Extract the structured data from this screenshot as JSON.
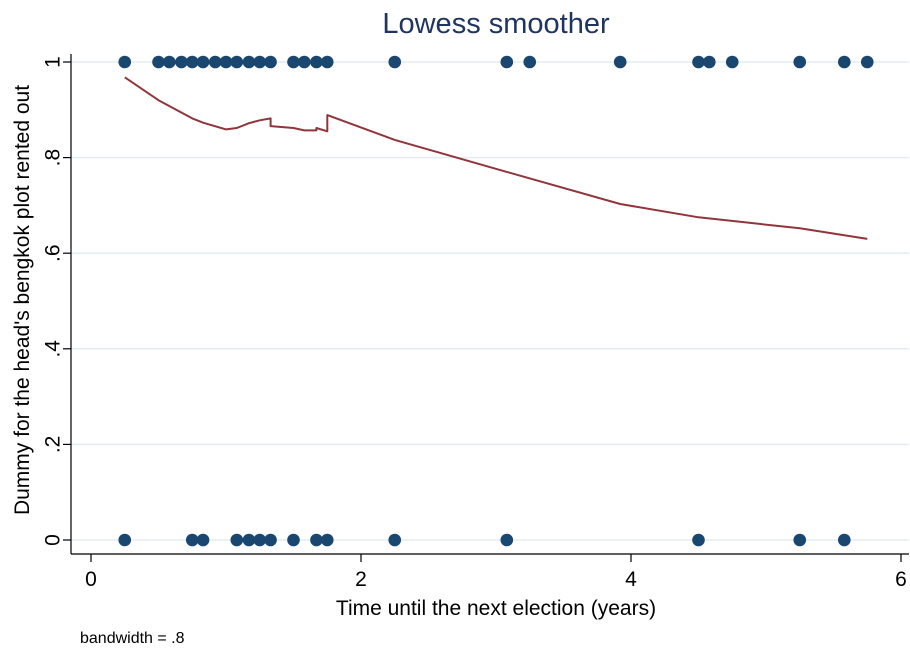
{
  "colors": {
    "background": "#ffffff",
    "title": "#1f3560",
    "grid": "#e3ecf0",
    "marker": "#1a476f",
    "smooth_line": "#90353b",
    "axis": "#000000"
  },
  "chart_data": {
    "type": "scatter",
    "title": "Lowess smoother",
    "xlabel": "Time until the next election (years)",
    "ylabel": "Dummy for the head's bengkok plot rented out",
    "note": "bandwidth = .8",
    "xlim": [
      0,
      6
    ],
    "ylim": [
      0,
      1
    ],
    "x_ticks": [
      {
        "value": 0,
        "label": "0"
      },
      {
        "value": 2,
        "label": "2"
      },
      {
        "value": 4,
        "label": "4"
      },
      {
        "value": 6,
        "label": "6"
      }
    ],
    "y_ticks": [
      {
        "value": 0,
        "label": "0"
      },
      {
        "value": 0.2,
        "label": ".2"
      },
      {
        "value": 0.4,
        "label": ".4"
      },
      {
        "value": 0.6,
        "label": ".6"
      },
      {
        "value": 0.8,
        "label": ".8"
      },
      {
        "value": 1,
        "label": "1"
      }
    ],
    "grid": true,
    "legend": "none",
    "series": [
      {
        "kind": "points",
        "points": [
          [
            0.25,
            1
          ],
          [
            0.5,
            1
          ],
          [
            0.58,
            1
          ],
          [
            0.67,
            1
          ],
          [
            0.75,
            1
          ],
          [
            0.83,
            1
          ],
          [
            0.92,
            1
          ],
          [
            1.0,
            1
          ],
          [
            1.08,
            1
          ],
          [
            1.17,
            1
          ],
          [
            1.25,
            1
          ],
          [
            1.33,
            1
          ],
          [
            1.5,
            1
          ],
          [
            1.58,
            1
          ],
          [
            1.67,
            1
          ],
          [
            1.75,
            1
          ],
          [
            2.25,
            1
          ],
          [
            3.08,
            1
          ],
          [
            3.25,
            1
          ],
          [
            3.92,
            1
          ],
          [
            4.5,
            1
          ],
          [
            4.58,
            1
          ],
          [
            4.75,
            1
          ],
          [
            5.25,
            1
          ],
          [
            5.58,
            1
          ],
          [
            5.75,
            1
          ],
          [
            0.25,
            0
          ],
          [
            0.75,
            0
          ],
          [
            0.83,
            0
          ],
          [
            1.08,
            0
          ],
          [
            1.17,
            0
          ],
          [
            1.25,
            0
          ],
          [
            1.33,
            0
          ],
          [
            1.5,
            0
          ],
          [
            1.67,
            0
          ],
          [
            1.75,
            0
          ],
          [
            2.25,
            0
          ],
          [
            3.08,
            0
          ],
          [
            4.5,
            0
          ],
          [
            5.25,
            0
          ],
          [
            5.58,
            0
          ]
        ]
      },
      {
        "kind": "lowess-line",
        "points": [
          [
            0.25,
            0.968
          ],
          [
            0.5,
            0.92
          ],
          [
            0.75,
            0.882
          ],
          [
            0.83,
            0.873
          ],
          [
            1.0,
            0.859
          ],
          [
            1.08,
            0.862
          ],
          [
            1.17,
            0.872
          ],
          [
            1.25,
            0.878
          ],
          [
            1.33,
            0.882
          ],
          [
            1.33,
            0.866
          ],
          [
            1.5,
            0.862
          ],
          [
            1.58,
            0.857
          ],
          [
            1.67,
            0.857
          ],
          [
            1.67,
            0.862
          ],
          [
            1.75,
            0.855
          ],
          [
            1.75,
            0.889
          ],
          [
            2.25,
            0.837
          ],
          [
            3.08,
            0.77
          ],
          [
            3.92,
            0.703
          ],
          [
            4.5,
            0.675
          ],
          [
            5.25,
            0.652
          ],
          [
            5.75,
            0.63
          ]
        ]
      }
    ]
  }
}
